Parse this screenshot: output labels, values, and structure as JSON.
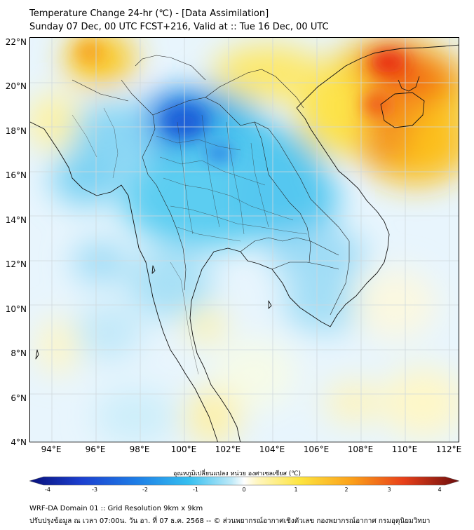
{
  "header": {
    "title": "Temperature Change 24-hr (℃) - [Data Assimilation]",
    "subtitle": "Sunday 07 Dec, 00 UTC FCST+216, Valid at :: Tue 16 Dec, 00 UTC"
  },
  "axes": {
    "lat_labels": [
      "22°N",
      "20°N",
      "18°N",
      "16°N",
      "14°N",
      "12°N",
      "10°N",
      "8°N",
      "6°N",
      "4°N"
    ],
    "lon_labels": [
      "94°E",
      "96°E",
      "98°E",
      "100°E",
      "102°E",
      "104°E",
      "106°E",
      "108°E",
      "110°E",
      "112°E"
    ]
  },
  "colorbar": {
    "label": "อุณหภูมิเปลี่ยนแปลง หน่วย องศาเซลเซียส (℃)",
    "ticks": [
      "-4",
      "-3",
      "-2",
      "-1",
      "0",
      "1",
      "2",
      "3",
      "4"
    ],
    "min": -4,
    "max": 4
  },
  "footer": {
    "line1": "WRF-DA Domain 01 :: Grid Resolution 9km x 9km",
    "line2": "ปรับปรุงข้อมูล ณ เวลา 07:00น. วัน อา. ที่ 07 ธ.ค. 2568 -- © ส่วนพยากรณ์อากาศเชิงตัวเลข กองพยากรณ์อากาศ กรมอุตุนิยมวิทยา"
  }
}
